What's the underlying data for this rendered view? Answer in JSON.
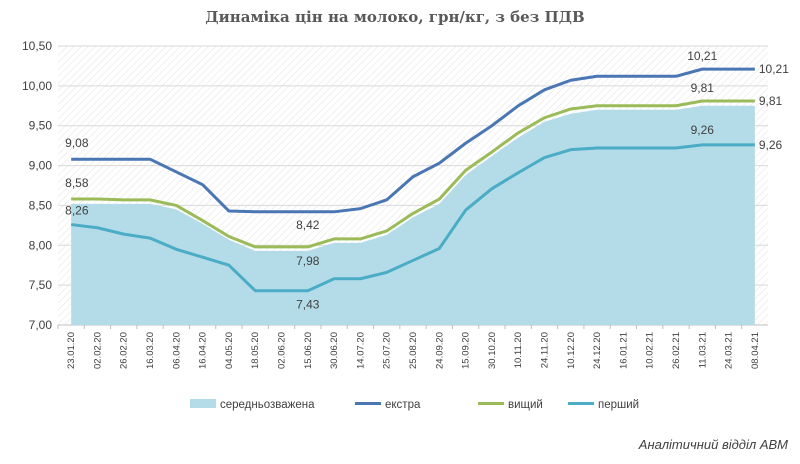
{
  "chart_data": {
    "type": "line",
    "title": "Динаміка цін на молоко, грн/кг, з без ПДВ",
    "xlabel": "",
    "ylabel": "",
    "ylim": [
      7.0,
      10.5
    ],
    "yticks": [
      "7,00",
      "7,50",
      "8,00",
      "8,50",
      "9,00",
      "9,50",
      "10,00",
      "10,50"
    ],
    "categories": [
      "23.01.20",
      "02.02.20",
      "26.02.20",
      "16.03.20",
      "06.04.20",
      "16.04.20",
      "04.05.20",
      "18.05.20",
      "02.06.20",
      "15.06.20",
      "30.06.20",
      "14.07.20",
      "25.07.20",
      "25.08.20",
      "24.09.20",
      "15.09.20",
      "30.10.20",
      "10.11.20",
      "24.11.20",
      "10.12.20",
      "24.12.20",
      "16.01.21",
      "10.02.21",
      "26.02.21",
      "11.03.21",
      "24.03.21",
      "08.04.21"
    ],
    "grid": true,
    "legend_position": "bottom",
    "series": [
      {
        "name": "середньозважена",
        "kind": "area",
        "color": "#b4dce8",
        "values": [
          8.52,
          8.52,
          8.52,
          8.52,
          8.45,
          8.27,
          8.07,
          7.93,
          7.93,
          7.93,
          8.03,
          8.03,
          8.13,
          8.35,
          8.52,
          8.88,
          9.12,
          9.35,
          9.55,
          9.65,
          9.7,
          9.7,
          9.7,
          9.7,
          9.75,
          9.75,
          9.75
        ]
      },
      {
        "name": "екстра",
        "kind": "line",
        "color": "#4a77b4",
        "values": [
          9.08,
          9.08,
          9.08,
          9.08,
          8.92,
          8.76,
          8.43,
          8.42,
          8.42,
          8.42,
          8.42,
          8.46,
          8.57,
          8.86,
          9.03,
          9.28,
          9.5,
          9.75,
          9.95,
          10.07,
          10.12,
          10.12,
          10.12,
          10.12,
          10.21,
          10.21,
          10.21
        ]
      },
      {
        "name": "вищий",
        "kind": "line",
        "color": "#9bbb59",
        "values": [
          8.58,
          8.58,
          8.57,
          8.57,
          8.5,
          8.31,
          8.11,
          7.98,
          7.98,
          7.98,
          8.08,
          8.08,
          8.18,
          8.4,
          8.58,
          8.94,
          9.17,
          9.41,
          9.6,
          9.71,
          9.75,
          9.75,
          9.75,
          9.75,
          9.81,
          9.81,
          9.81
        ]
      },
      {
        "name": "перший",
        "kind": "line",
        "color": "#4bacc6",
        "values": [
          8.26,
          8.22,
          8.14,
          8.09,
          7.95,
          7.85,
          7.75,
          7.43,
          7.43,
          7.43,
          7.58,
          7.58,
          7.66,
          7.81,
          7.96,
          8.44,
          8.71,
          8.91,
          9.1,
          9.2,
          9.22,
          9.22,
          9.22,
          9.22,
          9.26,
          9.26,
          9.26
        ]
      }
    ],
    "annotations": [
      {
        "series": 1,
        "index": 0,
        "text": "9,08"
      },
      {
        "series": 2,
        "index": 0,
        "text": "8,58"
      },
      {
        "series": 3,
        "index": 0,
        "text": "8,26"
      },
      {
        "series": 1,
        "index": 9,
        "text": "8,42"
      },
      {
        "series": 2,
        "index": 9,
        "text": "7,98"
      },
      {
        "series": 3,
        "index": 9,
        "text": "7,43"
      },
      {
        "series": 1,
        "index": 24,
        "text": "10,21"
      },
      {
        "series": 2,
        "index": 24,
        "text": "9,81"
      },
      {
        "series": 3,
        "index": 24,
        "text": "9,26"
      },
      {
        "series": 1,
        "index": 26,
        "text": "10,21"
      },
      {
        "series": 2,
        "index": 26,
        "text": "9,81"
      },
      {
        "series": 3,
        "index": 26,
        "text": "9,26"
      }
    ]
  },
  "colors": {
    "grid": "#d9d9d9",
    "hatch": "#e4e4e4",
    "axis": "#bfbfbf"
  },
  "source": "Аналітичний відділ АВМ"
}
